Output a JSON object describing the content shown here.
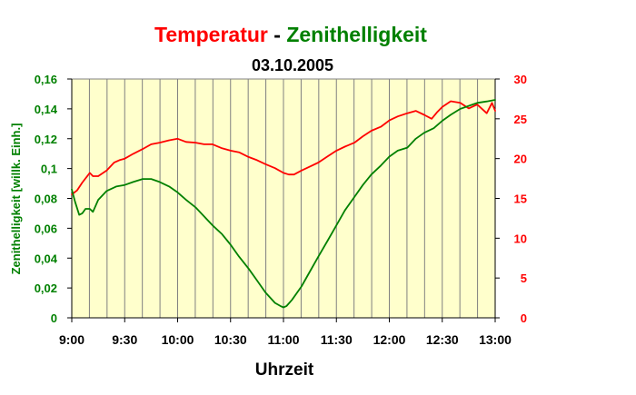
{
  "chart_data": {
    "type": "line",
    "title_part1": "Temperatur",
    "title_sep": " - ",
    "title_part2": "Zenithelligkeit",
    "subtitle": "03.10.2005",
    "xlabel": "Uhrzeit",
    "ylabel_left": "Zenithelligkeit [willk. Einh.]",
    "xlim": [
      9.0,
      13.0
    ],
    "ylim_left": [
      0,
      0.16
    ],
    "ylim_right": [
      0,
      30
    ],
    "x_ticks": [
      "9:00",
      "9:30",
      "10:00",
      "10:30",
      "11:00",
      "11:30",
      "12:00",
      "12:30",
      "13:00"
    ],
    "y_ticks_left": [
      "0",
      "0,02",
      "0,04",
      "0,06",
      "0,08",
      "0,1",
      "0,12",
      "0,14",
      "0,16"
    ],
    "y_ticks_right": [
      "0",
      "5",
      "10",
      "15",
      "20",
      "25",
      "30"
    ],
    "grid": "vertical",
    "plot_background": "#ffffcc",
    "colors": {
      "temperature": "#ff0000",
      "brightness": "#008000",
      "grid": "#808080"
    },
    "series": [
      {
        "key": "temperature",
        "axis": "right",
        "x": [
          9.0,
          9.05,
          9.1,
          9.17,
          9.2,
          9.25,
          9.33,
          9.4,
          9.45,
          9.5,
          9.58,
          9.67,
          9.75,
          9.83,
          9.92,
          10.0,
          10.08,
          10.17,
          10.25,
          10.33,
          10.42,
          10.5,
          10.58,
          10.67,
          10.75,
          10.83,
          10.92,
          11.0,
          11.05,
          11.1,
          11.17,
          11.25,
          11.33,
          11.42,
          11.5,
          11.58,
          11.67,
          11.75,
          11.83,
          11.92,
          12.0,
          12.08,
          12.17,
          12.25,
          12.33,
          12.4,
          12.45,
          12.5,
          12.58,
          12.67,
          12.75,
          12.83,
          12.92,
          12.97,
          13.0
        ],
        "values": [
          15.5,
          16.0,
          17.0,
          18.2,
          17.8,
          17.8,
          18.5,
          19.5,
          19.8,
          20.0,
          20.6,
          21.2,
          21.8,
          22.0,
          22.3,
          22.5,
          22.1,
          22.0,
          21.8,
          21.8,
          21.3,
          21.0,
          20.8,
          20.2,
          19.8,
          19.3,
          18.8,
          18.2,
          18.0,
          18.0,
          18.5,
          19.0,
          19.5,
          20.3,
          21.0,
          21.5,
          22.0,
          22.8,
          23.5,
          24.0,
          24.8,
          25.3,
          25.7,
          26.0,
          25.5,
          25.0,
          25.8,
          26.5,
          27.2,
          27.0,
          26.3,
          26.8,
          25.7,
          27.0,
          26.0
        ]
      },
      {
        "key": "brightness",
        "axis": "left",
        "x": [
          9.0,
          9.03,
          9.07,
          9.1,
          9.13,
          9.17,
          9.2,
          9.25,
          9.33,
          9.42,
          9.5,
          9.58,
          9.67,
          9.75,
          9.83,
          9.92,
          10.0,
          10.08,
          10.17,
          10.25,
          10.33,
          10.42,
          10.5,
          10.58,
          10.67,
          10.75,
          10.83,
          10.92,
          10.97,
          11.0,
          11.03,
          11.08,
          11.17,
          11.25,
          11.33,
          11.42,
          11.5,
          11.58,
          11.67,
          11.75,
          11.83,
          11.92,
          12.0,
          12.08,
          12.17,
          12.25,
          12.33,
          12.42,
          12.5,
          12.58,
          12.67,
          12.75,
          12.83,
          12.92,
          13.0
        ],
        "values": [
          0.086,
          0.078,
          0.069,
          0.07,
          0.073,
          0.073,
          0.071,
          0.079,
          0.085,
          0.088,
          0.089,
          0.091,
          0.093,
          0.093,
          0.091,
          0.088,
          0.084,
          0.079,
          0.074,
          0.068,
          0.062,
          0.056,
          0.049,
          0.041,
          0.033,
          0.025,
          0.017,
          0.01,
          0.008,
          0.007,
          0.008,
          0.012,
          0.021,
          0.031,
          0.041,
          0.052,
          0.062,
          0.072,
          0.081,
          0.089,
          0.096,
          0.102,
          0.108,
          0.112,
          0.114,
          0.12,
          0.124,
          0.127,
          0.132,
          0.136,
          0.14,
          0.142,
          0.144,
          0.145,
          0.146
        ]
      }
    ]
  }
}
